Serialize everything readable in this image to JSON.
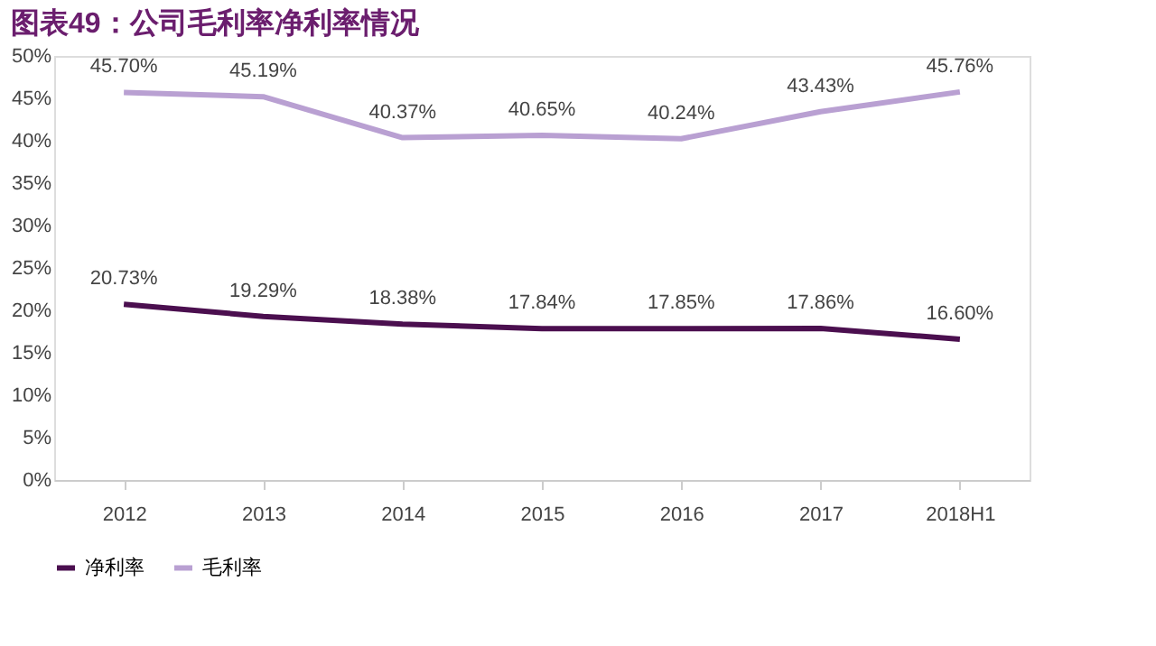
{
  "chart_data": {
    "type": "line",
    "title": "图表49：公司毛利率净利率情况",
    "categories": [
      "2012",
      "2013",
      "2014",
      "2015",
      "2016",
      "2017",
      "2018H1"
    ],
    "series": [
      {
        "name": "净利率",
        "color": "#4b0f4f",
        "values": [
          20.73,
          19.29,
          18.38,
          17.84,
          17.85,
          17.86,
          16.6
        ],
        "value_labels": [
          "20.73%",
          "19.29%",
          "18.38%",
          "17.84%",
          "17.85%",
          "17.86%",
          "16.60%"
        ]
      },
      {
        "name": "毛利率",
        "color": "#b9a0d2",
        "values": [
          45.7,
          45.19,
          40.37,
          40.65,
          40.24,
          43.43,
          45.76
        ],
        "value_labels": [
          "45.70%",
          "45.19%",
          "40.37%",
          "40.65%",
          "40.24%",
          "43.43%",
          "45.76%"
        ]
      }
    ],
    "ylim": [
      0,
      50
    ],
    "yticks": [
      {
        "value": 0,
        "label": "0%"
      },
      {
        "value": 5,
        "label": "5%"
      },
      {
        "value": 10,
        "label": "10%"
      },
      {
        "value": 15,
        "label": "15%"
      },
      {
        "value": 20,
        "label": "20%"
      },
      {
        "value": 25,
        "label": "25%"
      },
      {
        "value": 30,
        "label": "30%"
      },
      {
        "value": 35,
        "label": "35%"
      },
      {
        "value": 40,
        "label": "40%"
      },
      {
        "value": 45,
        "label": "45%"
      },
      {
        "value": 50,
        "label": "50%"
      }
    ],
    "grid": false,
    "legend": "bottom",
    "marker": "none",
    "line_style": "solid"
  }
}
